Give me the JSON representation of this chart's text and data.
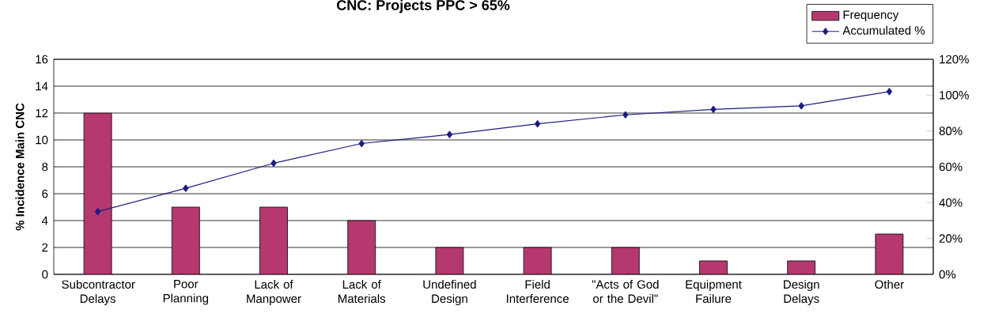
{
  "chart_data": {
    "type": "bar",
    "title": "CNC: Projects PPC > 65%",
    "ylabel": "% Incidence Main CNC",
    "categories": [
      "Subcontractor Delays",
      "Poor Planning",
      "Lack of Manpower",
      "Lack of Materials",
      "Undefined Design",
      "Field Interference",
      "\"Acts of God or the Devil\"",
      "Equipment Failure",
      "Design Delays",
      "Other"
    ],
    "series": [
      {
        "name": "Frequency",
        "color": "#b5386f",
        "values": [
          12,
          5,
          5,
          4,
          2,
          2,
          2,
          1,
          1,
          3
        ]
      },
      {
        "name": "Accumulated %",
        "type": "line",
        "axis": "y2",
        "color": "#1c1c80",
        "marker": "diamond",
        "line_style": "solid",
        "values": [
          35,
          48,
          62,
          73,
          78,
          84,
          89,
          92,
          94,
          102
        ]
      }
    ],
    "ylim": [
      0,
      16
    ],
    "yticks": [
      0,
      2,
      4,
      6,
      8,
      10,
      12,
      14,
      16
    ],
    "y2lim": [
      0,
      120
    ],
    "y2ticks": [
      {
        "value": 0,
        "label": "0%"
      },
      {
        "value": 20,
        "label": "20%"
      },
      {
        "value": 40,
        "label": "40%"
      },
      {
        "value": 60,
        "label": "60%"
      },
      {
        "value": 80,
        "label": "80%"
      },
      {
        "value": 100,
        "label": "100%"
      },
      {
        "value": 120,
        "label": "120%"
      }
    ],
    "grid": "y",
    "legend": "top right"
  }
}
